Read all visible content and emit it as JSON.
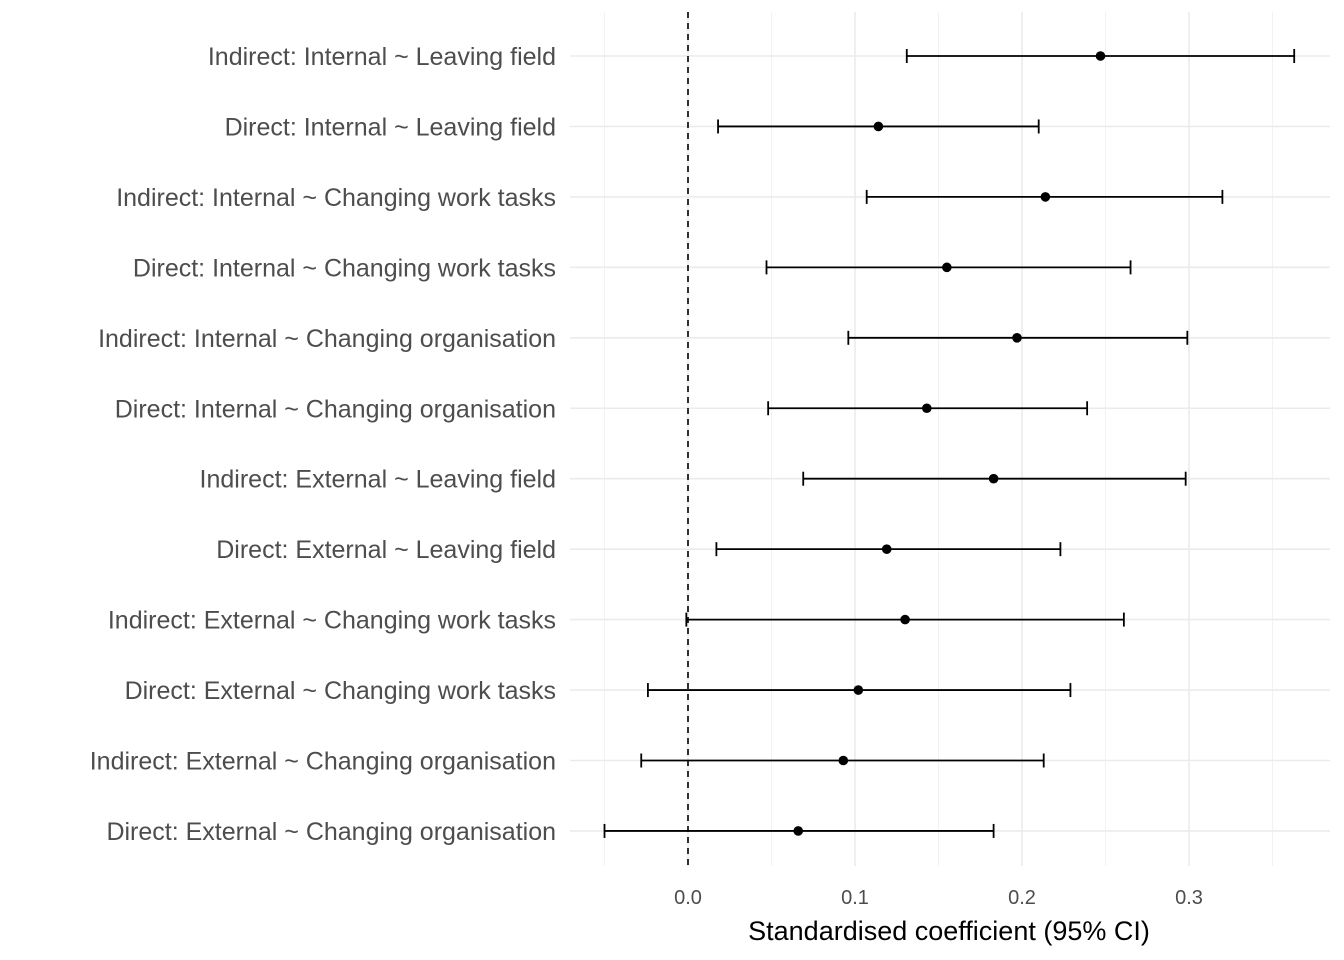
{
  "chart_data": {
    "type": "forest",
    "title": "",
    "xlabel": "Standardised coefficient (95% CI)",
    "ylabel": "",
    "xlim": [
      -0.055,
      0.365
    ],
    "xticks": [
      "0.0",
      "0.1",
      "0.2",
      "0.3"
    ],
    "xtick_values": [
      0.0,
      0.1,
      0.2,
      0.3
    ],
    "reference_line": 0,
    "grid": true,
    "categories": [
      "Indirect: Internal ~ Leaving field",
      "Direct: Internal ~ Leaving field",
      "Indirect: Internal ~ Changing work tasks",
      "Direct: Internal ~ Changing work tasks",
      "Indirect: Internal ~ Changing organisation",
      "Direct: Internal ~ Changing organisation",
      "Indirect: External ~ Leaving field",
      "Direct: External ~ Leaving field",
      "Indirect: External ~ Changing work tasks",
      "Direct: External ~ Changing work tasks",
      "Indirect: External ~ Changing organisation",
      "Direct: External ~ Changing organisation"
    ],
    "estimates": [
      0.247,
      0.114,
      0.214,
      0.155,
      0.197,
      0.143,
      0.183,
      0.119,
      0.13,
      0.102,
      0.093,
      0.066
    ],
    "lower": [
      0.131,
      0.018,
      0.107,
      0.047,
      0.096,
      0.048,
      0.069,
      0.017,
      -0.001,
      -0.024,
      -0.028,
      -0.05
    ],
    "upper": [
      0.363,
      0.21,
      0.32,
      0.265,
      0.299,
      0.239,
      0.298,
      0.223,
      0.261,
      0.229,
      0.213,
      0.183
    ],
    "point_color": "#000000",
    "grid_color": "#ebebeb"
  }
}
